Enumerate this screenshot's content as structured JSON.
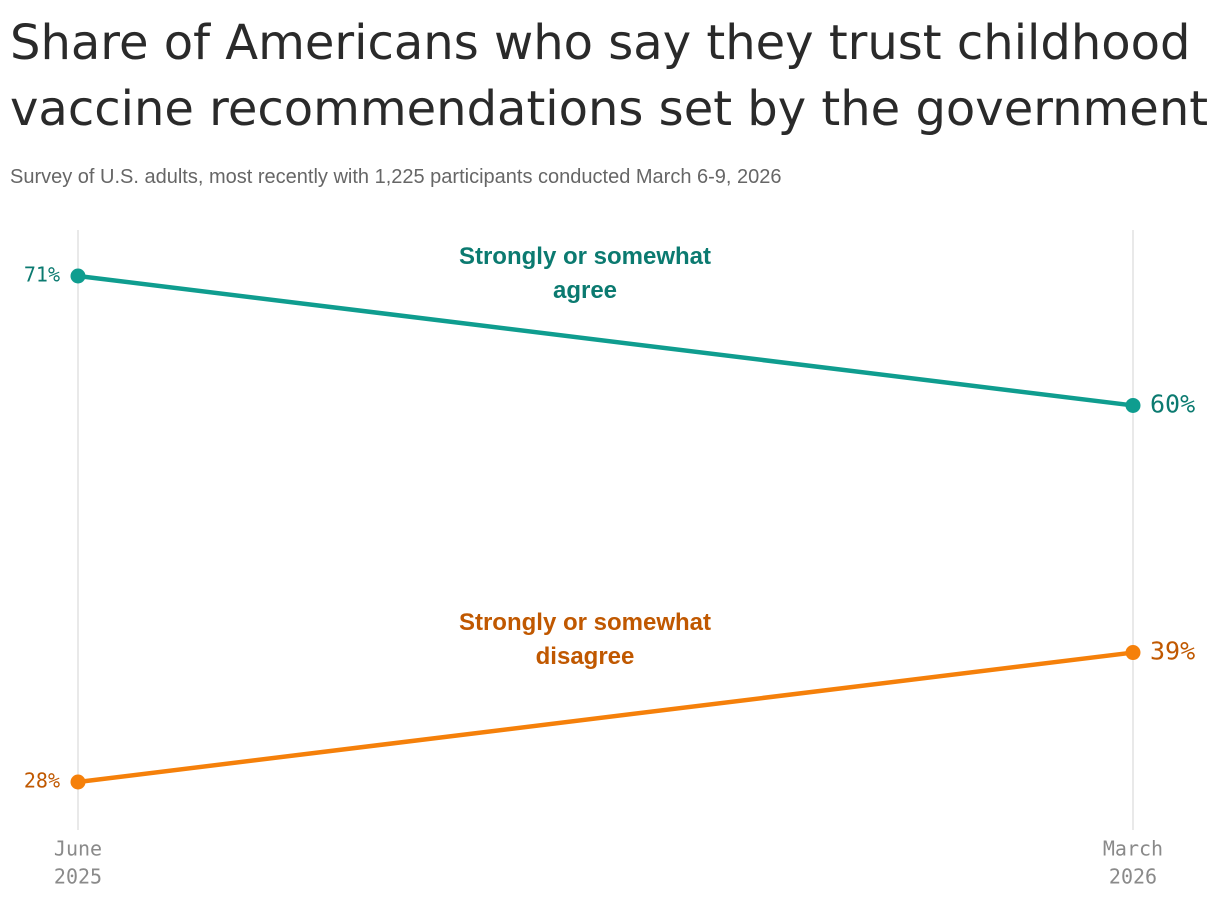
{
  "chart_data": {
    "type": "line",
    "title": "Share of Americans who say they trust childhood vaccine recommendations set by the government",
    "subtitle": "Survey of U.S. adults, most recently with 1,225 participants conducted March 6-9, 2026",
    "categories": [
      [
        "June",
        "2025"
      ],
      [
        "March",
        "2026"
      ]
    ],
    "series": [
      {
        "name": "Strongly or somewhat agree",
        "color": "#0f9d8f",
        "label_color": "#0b7a70",
        "values": [
          71,
          60
        ],
        "value_labels": [
          "71%",
          "60%"
        ]
      },
      {
        "name": "Strongly or somewhat disagree",
        "color": "#f5800a",
        "label_color": "#c05800",
        "values": [
          28,
          39
        ],
        "value_labels": [
          "28%",
          "39%"
        ]
      }
    ]
  }
}
